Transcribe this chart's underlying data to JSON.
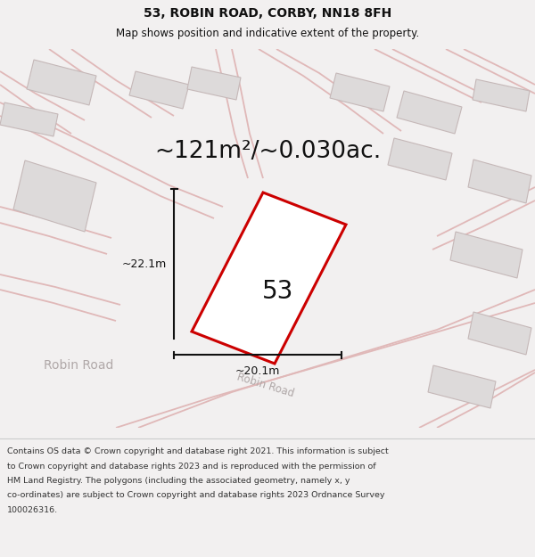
{
  "title_line1": "53, ROBIN ROAD, CORBY, NN18 8FH",
  "title_line2": "Map shows position and indicative extent of the property.",
  "area_text": "~121m²/~0.030ac.",
  "label_53": "53",
  "dim_vertical": "~22.1m",
  "dim_horizontal": "~20.1m",
  "road_label_left": "Robin Road",
  "road_label_diag": "Robin Road",
  "footer_lines": [
    "Contains OS data © Crown copyright and database right 2021. This information is subject",
    "to Crown copyright and database rights 2023 and is reproduced with the permission of",
    "HM Land Registry. The polygons (including the associated geometry, namely x, y",
    "co-ordinates) are subject to Crown copyright and database rights 2023 Ordnance Survey",
    "100026316."
  ],
  "bg_color": "#f2f0f0",
  "map_bg": "#eeecec",
  "plot_fill": "#ffffff",
  "plot_edge": "#cc0000",
  "road_line_color": "#e0b8b8",
  "building_fill": "#dddada",
  "building_edge": "#c5b8b8",
  "dim_color": "#111111",
  "text_dark": "#111111",
  "road_text_color": "#b0a8a8",
  "footer_bg": "#ffffff",
  "sep_line_color": "#cccccc",
  "title_fontsize": 10,
  "subtitle_fontsize": 8.5,
  "area_fontsize": 19,
  "label53_fontsize": 20,
  "dim_fontsize": 9,
  "road_fontsize": 10,
  "footer_fontsize": 6.8
}
